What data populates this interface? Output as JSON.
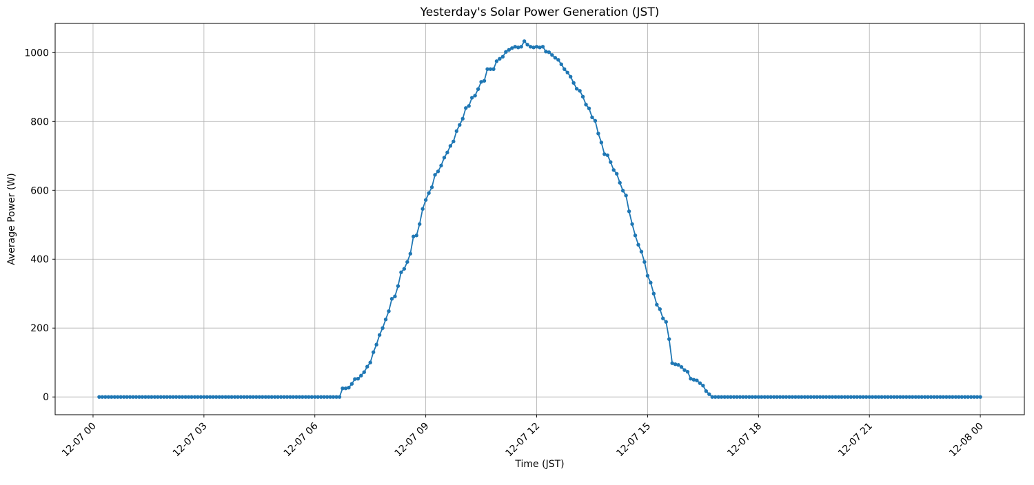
{
  "chart_data": {
    "type": "line",
    "title": "Yesterday's Solar Power Generation (JST)",
    "xlabel": "Time (JST)",
    "ylabel": "Average Power (W)",
    "legend": null,
    "grid": true,
    "line_color": "#1f77b4",
    "grid_color": "#b0b0b0",
    "spine_color": "#000000",
    "background_color": "#ffffff",
    "marker": "o",
    "x_tick_labels": [
      "12-07 00",
      "12-07 03",
      "12-07 06",
      "12-07 09",
      "12-07 12",
      "12-07 15",
      "12-07 18",
      "12-07 21",
      "12-08 00"
    ],
    "x_tick_minutes": [
      0,
      180,
      360,
      540,
      720,
      900,
      1080,
      1260,
      1440
    ],
    "y_ticks": [
      0,
      200,
      400,
      600,
      800,
      1000
    ],
    "xlim_minutes": [
      -61.5,
      1511.5
    ],
    "ylim": [
      -51.65,
      1084.65
    ],
    "x_start": "00:10",
    "x_end": "24:00",
    "interval_min": 5,
    "values": [
      0,
      0,
      0,
      0,
      0,
      0,
      0,
      0,
      0,
      0,
      0,
      0,
      0,
      0,
      0,
      0,
      0,
      0,
      0,
      0,
      0,
      0,
      0,
      0,
      0,
      0,
      0,
      0,
      0,
      0,
      0,
      0,
      0,
      0,
      0,
      0,
      0,
      0,
      0,
      0,
      0,
      0,
      0,
      0,
      0,
      0,
      0,
      0,
      0,
      0,
      0,
      0,
      0,
      0,
      0,
      0,
      0,
      0,
      0,
      0,
      0,
      0,
      0,
      0,
      0,
      0,
      0,
      0,
      0,
      0,
      0,
      0,
      0,
      0,
      0,
      0,
      0,
      0,
      0,
      25,
      25,
      27,
      38,
      52,
      53,
      62,
      72,
      88,
      100,
      130,
      152,
      180,
      200,
      225,
      249,
      285,
      292,
      322,
      362,
      372,
      392,
      416,
      466,
      469,
      502,
      546,
      572,
      592,
      609,
      645,
      655,
      672,
      695,
      710,
      729,
      742,
      772,
      790,
      808,
      839,
      845,
      869,
      875,
      894,
      915,
      918,
      952,
      952,
      952,
      975,
      982,
      988,
      1002,
      1008,
      1013,
      1017,
      1015,
      1017,
      1033,
      1023,
      1017,
      1015,
      1017,
      1015,
      1017,
      1003,
      1001,
      993,
      985,
      979,
      966,
      952,
      942,
      930,
      912,
      895,
      889,
      872,
      849,
      838,
      812,
      802,
      765,
      739,
      705,
      702,
      682,
      659,
      648,
      622,
      599,
      585,
      539,
      502,
      469,
      442,
      422,
      392,
      352,
      332,
      300,
      268,
      255,
      228,
      218,
      168,
      98,
      95,
      93,
      87,
      78,
      73,
      53,
      50,
      48,
      40,
      33,
      17,
      8,
      0,
      0,
      0,
      0,
      0,
      0,
      0,
      0,
      0,
      0,
      0,
      0,
      0,
      0,
      0,
      0,
      0,
      0,
      0,
      0,
      0,
      0,
      0,
      0,
      0,
      0,
      0,
      0,
      0,
      0,
      0,
      0,
      0,
      0,
      0,
      0,
      0,
      0,
      0,
      0,
      0,
      0,
      0,
      0,
      0,
      0,
      0,
      0,
      0,
      0,
      0,
      0,
      0,
      0,
      0,
      0,
      0,
      0,
      0,
      0,
      0,
      0,
      0,
      0,
      0,
      0,
      0,
      0,
      0,
      0,
      0,
      0,
      0,
      0,
      0,
      0,
      0,
      0,
      0,
      0,
      0,
      0,
      0,
      0,
      0,
      0,
      0,
      0
    ]
  }
}
